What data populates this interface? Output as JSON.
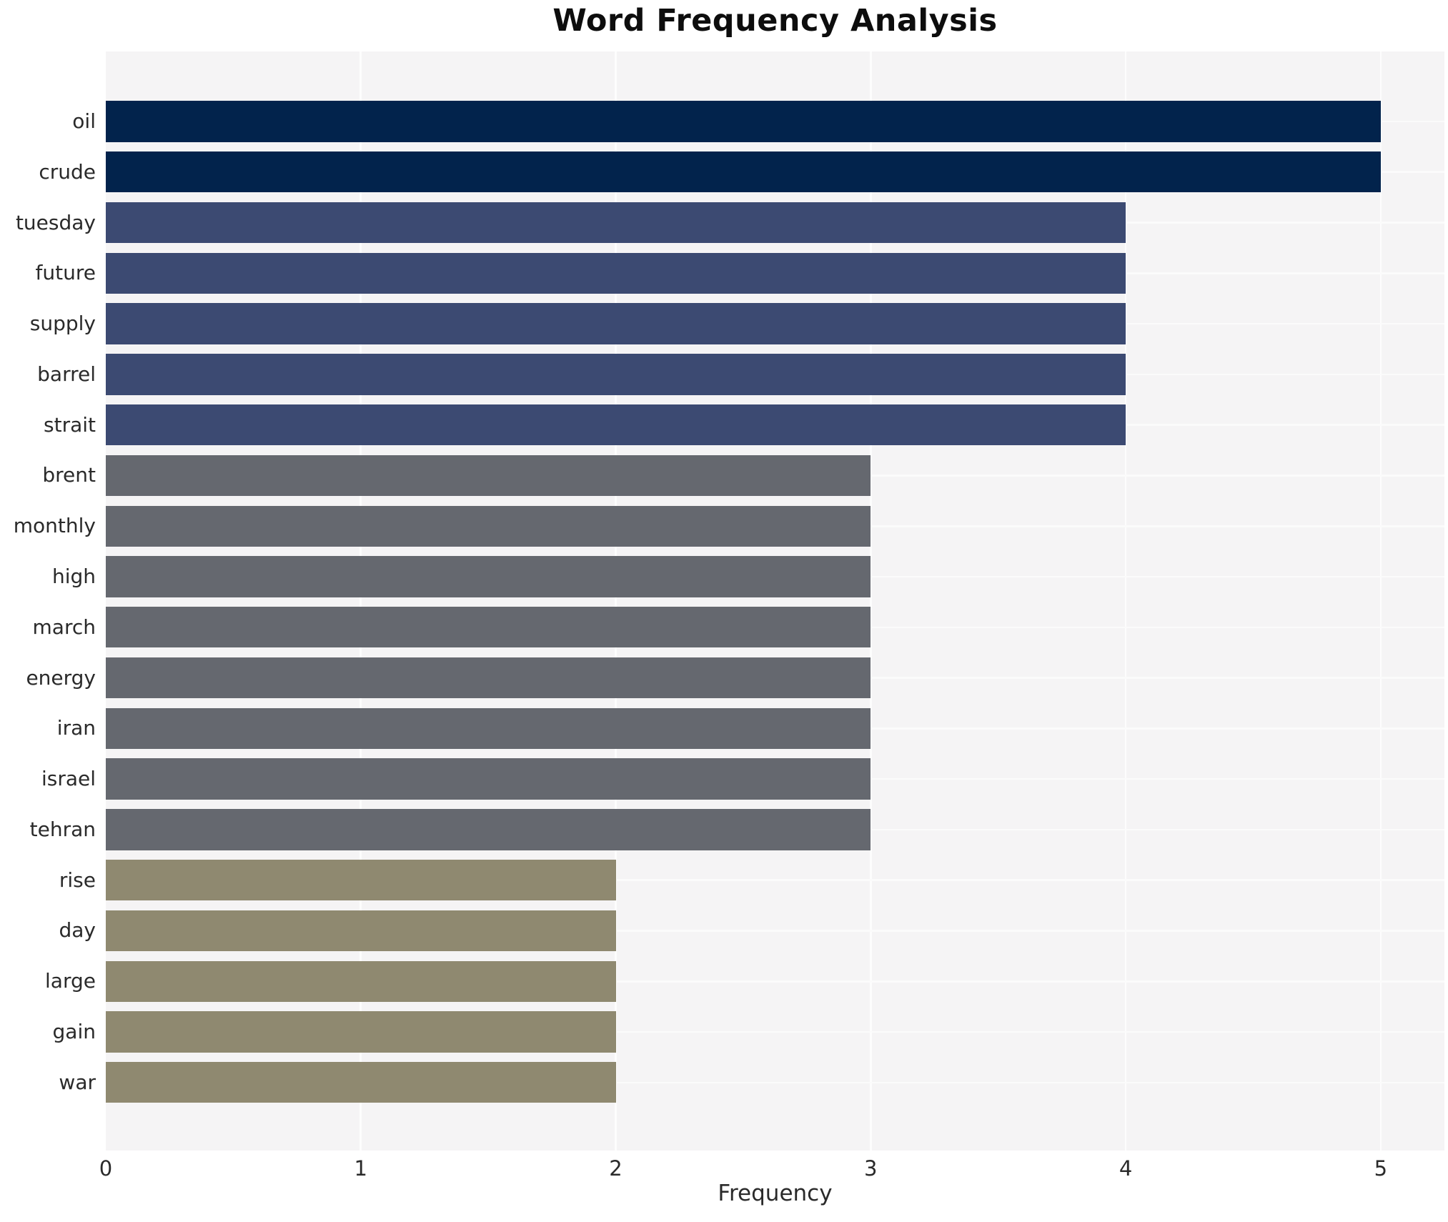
{
  "chart_data": {
    "type": "bar",
    "orientation": "horizontal",
    "title": "Word Frequency Analysis",
    "xlabel": "Frequency",
    "ylabel": "",
    "categories": [
      "oil",
      "crude",
      "tuesday",
      "future",
      "supply",
      "barrel",
      "strait",
      "brent",
      "monthly",
      "high",
      "march",
      "energy",
      "iran",
      "israel",
      "tehran",
      "rise",
      "day",
      "large",
      "gain",
      "war"
    ],
    "values": [
      5,
      5,
      4,
      4,
      4,
      4,
      4,
      3,
      3,
      3,
      3,
      3,
      3,
      3,
      3,
      2,
      2,
      2,
      2,
      2
    ],
    "xticks": [
      "0",
      "1",
      "2",
      "3",
      "4",
      "5"
    ],
    "xlim": [
      0,
      5.25
    ],
    "grid": true,
    "legend": false,
    "colors": {
      "value_5": "#02234c",
      "value_4": "#3c4a72",
      "value_3": "#65686f",
      "value_2": "#8f8970",
      "plot_background": "#f5f4f5",
      "gridline": "#fdfdfd",
      "title_text": "#0d0d0d",
      "axis_text": "#2a2a2a"
    }
  }
}
